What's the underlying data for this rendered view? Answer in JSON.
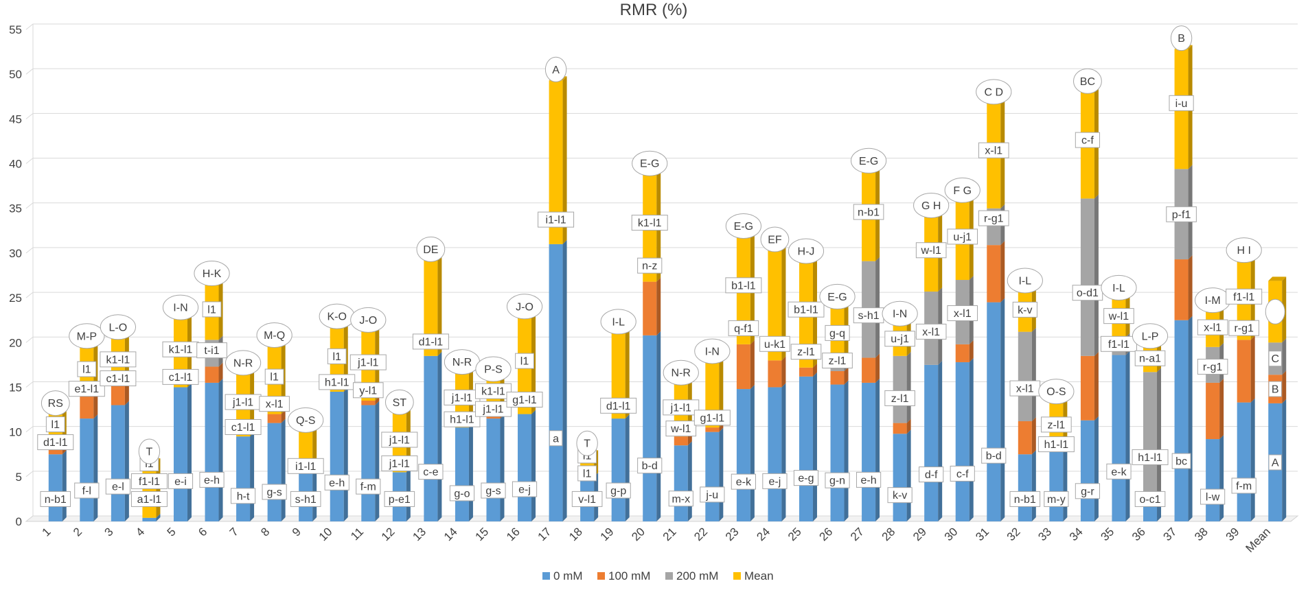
{
  "chart_data": {
    "type": "bar",
    "stacked": true,
    "title": "RMR (%)",
    "xlabel": "",
    "ylabel": "",
    "ylim": [
      0,
      55
    ],
    "yticks": [
      0,
      5,
      10,
      15,
      20,
      25,
      30,
      35,
      40,
      45,
      50,
      55
    ],
    "grid": true,
    "legend_position": "bottom",
    "colors": {
      "0 mM": "#5B9BD5",
      "100 mM": "#ED7D31",
      "200 mM": "#A5A5A5",
      "Mean": "#FFC000"
    },
    "categories": [
      "1",
      "2",
      "3",
      "4",
      "5",
      "6",
      "7",
      "8",
      "9",
      "10",
      "11",
      "12",
      "13",
      "14",
      "15",
      "16",
      "17",
      "18",
      "19",
      "20",
      "21",
      "22",
      "23",
      "24",
      "25",
      "26",
      "27",
      "28",
      "29",
      "30",
      "31",
      "32",
      "33",
      "34",
      "35",
      "36",
      "37",
      "38",
      "39",
      "Mean"
    ],
    "series": [
      {
        "name": "0 mM",
        "values": [
          7.5,
          11.5,
          13.0,
          0.4,
          15.0,
          15.5,
          9.5,
          11.0,
          5.5,
          14.5,
          13.0,
          5.5,
          18.5,
          10.5,
          11.5,
          12.0,
          31.0,
          5.0,
          11.5,
          20.8,
          8.5,
          10.0,
          14.8,
          15.0,
          16.2,
          15.3,
          15.5,
          9.8,
          17.5,
          17.8,
          24.5,
          7.5,
          7.8,
          11.3,
          18.6,
          2.5,
          22.5,
          9.2,
          13.3,
          13.2
        ]
      },
      {
        "name": "100 mM",
        "values": [
          0.8,
          2.5,
          2.2,
          0,
          0,
          1.8,
          0,
          1.0,
          0,
          0,
          0.5,
          0,
          0,
          0,
          0.5,
          0,
          0,
          0,
          0,
          6.0,
          1.0,
          0.5,
          5.0,
          3.0,
          1.0,
          1.5,
          2.8,
          1.2,
          0,
          2.0,
          6.4,
          3.7,
          0,
          7.2,
          0,
          0,
          6.8,
          6.3,
          7.0,
          3.2
        ]
      },
      {
        "name": "200 mM",
        "values": [
          0,
          0,
          0,
          0,
          0,
          3.0,
          0,
          0,
          0,
          0,
          0,
          0,
          0,
          0,
          0,
          0,
          0,
          0,
          0,
          0,
          0,
          0,
          0,
          0,
          0,
          0.8,
          10.8,
          7.5,
          8.2,
          7.2,
          4.1,
          10.0,
          0,
          17.6,
          2.0,
          14.2,
          10.1,
          4.0,
          0,
          3.6
        ]
      },
      {
        "name": "Mean",
        "values": [
          3.7,
          5.5,
          5.3,
          6.2,
          7.7,
          6.2,
          7.0,
          7.6,
          4.6,
          7.2,
          7.8,
          6.6,
          10.7,
          6.1,
          3.8,
          10.8,
          18.3,
          2.5,
          9.6,
          12.0,
          5.9,
          7.3,
          12.0,
          12.3,
          11.8,
          6.3,
          10.0,
          3.5,
          8.4,
          8.8,
          11.8,
          4.5,
          5.5,
          11.9,
          4.3,
          2.8,
          13.4,
          4.0,
          8.8,
          6.9
        ]
      }
    ],
    "labels": {
      "0 mM": [
        "n-b1",
        "f-l",
        "e-l",
        "a1-l1",
        "e-i",
        "e-h",
        "h-t",
        "g-s",
        "s-h1",
        "e-h",
        "f-m",
        "p-e1",
        "c-e",
        "g-o",
        "g-s",
        "e-j",
        "a",
        "v-l1",
        "g-p",
        "b-d",
        "m-x",
        "j-u",
        "e-k",
        "e-j",
        "e-g",
        "g-n",
        "e-h",
        "k-v",
        "d-f",
        "c-f",
        "b-d",
        "n-b1",
        "m-y",
        "g-r",
        "e-k",
        "o-c1",
        "bc",
        "l-w",
        "f-m",
        "A"
      ],
      "100 mM": [
        "d1-l1",
        "e1-l1",
        "c1-l1",
        "f1-l1",
        "c1-l1",
        "t-i1",
        "c1-l1",
        "x-l1",
        "i1-l1",
        "h1-l1",
        "y-l1",
        "j1-l1",
        "d1-l1",
        "h1-l1",
        "j1-l1",
        "g1-l1",
        "i1-l1",
        "l1",
        "d1-l1",
        "n-z",
        "w-l1",
        "g1-l1",
        "q-f1",
        "u-k1",
        "z-l1",
        "z-l1",
        "s-h1",
        "z-l1",
        "x-l1",
        "x-l1",
        "r-g1",
        "x-l1",
        "h1-l1",
        "o-d1",
        "f1-l1",
        "h1-l1",
        "p-f1",
        "r-g1",
        "r-g1",
        "B"
      ],
      "200 mM": [
        "l1",
        "l1",
        "k1-l1",
        "l1",
        "k1-l1",
        "l1",
        "j1-l1",
        "l1",
        "",
        "l1",
        "j1-l1",
        "j1-l1",
        "",
        "j1-l1",
        "k1-l1",
        "l1",
        "",
        "l1",
        "",
        "k1-l1",
        "j1-l1",
        "",
        "b1-l1",
        "",
        "b1-l1",
        "g-q",
        "n-b1",
        "u-j1",
        "w-l1",
        "u-j1",
        "x-l1",
        "k-v",
        "z-l1",
        "c-f",
        "w-l1",
        "n-a1",
        "i-u",
        "x-l1",
        "f1-l1",
        "C"
      ],
      "Mean": [
        "RS",
        "M-P",
        "L-O",
        "T",
        "I-N",
        "H-K",
        "N-R",
        "M-Q",
        "Q-S",
        "K-O",
        "J-O",
        "ST",
        "DE",
        "N-R",
        "P-S",
        "J-O",
        "A",
        "T",
        "I-L",
        "E-G",
        "N-R",
        "I-N",
        "E-G",
        "EF",
        "H-J",
        "E-G",
        "E-G",
        "I-N",
        "G H",
        "F G",
        "C D",
        "I-L",
        "O-S",
        "BC",
        "I-L",
        "L-P",
        "B",
        "I-M",
        "H I",
        ""
      ]
    }
  }
}
